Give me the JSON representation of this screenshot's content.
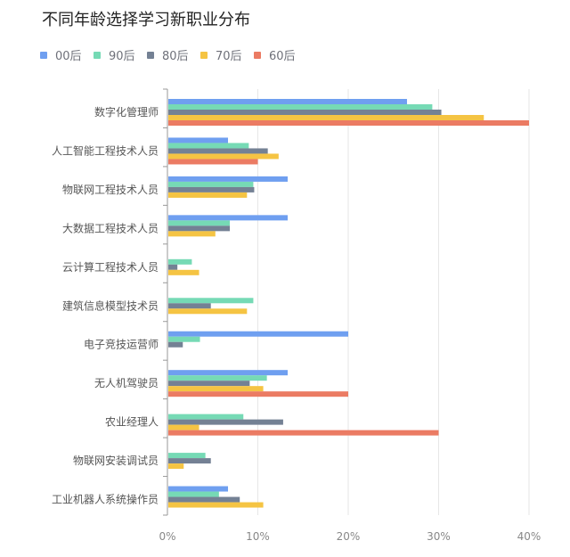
{
  "chart_data": {
    "type": "bar",
    "orientation": "horizontal",
    "title": "不同年龄选择学习新职业分布",
    "xlabel": "",
    "ylabel": "",
    "xlim": [
      0,
      40
    ],
    "x_ticks": [
      "0%",
      "10%",
      "20%",
      "30%",
      "40%"
    ],
    "grid": "vertical",
    "legend_position": "top-left",
    "categories": [
      "数字化管理师",
      "人工智能工程技术人员",
      "物联网工程技术人员",
      "大数据工程技术人员",
      "云计算工程技术人员",
      "建筑信息模型技术员",
      "电子竞技运营师",
      "无人机驾驶员",
      "农业经理人",
      "物联网安装调试员",
      "工业机器人系统操作员"
    ],
    "series": [
      {
        "name": "00后",
        "color": "#6f9ff0",
        "values": [
          26.5,
          6.7,
          13.3,
          13.3,
          0,
          0,
          20.0,
          13.3,
          0,
          0,
          6.7
        ]
      },
      {
        "name": "90后",
        "color": "#76dab5",
        "values": [
          29.3,
          9.0,
          9.5,
          6.9,
          2.7,
          9.5,
          3.6,
          11.0,
          8.4,
          4.2,
          5.7
        ]
      },
      {
        "name": "80后",
        "color": "#748194",
        "values": [
          30.3,
          11.1,
          9.6,
          6.9,
          1.1,
          4.8,
          1.7,
          9.1,
          12.8,
          4.8,
          8.0
        ]
      },
      {
        "name": "70后",
        "color": "#f5c443",
        "values": [
          35.0,
          12.3,
          8.8,
          5.3,
          3.5,
          8.8,
          0,
          10.6,
          3.5,
          1.8,
          10.6
        ]
      },
      {
        "name": "60后",
        "color": "#eb7b63",
        "values": [
          40.0,
          10.0,
          0,
          0,
          0,
          0,
          0,
          20.0,
          30.0,
          0,
          0
        ]
      }
    ]
  }
}
